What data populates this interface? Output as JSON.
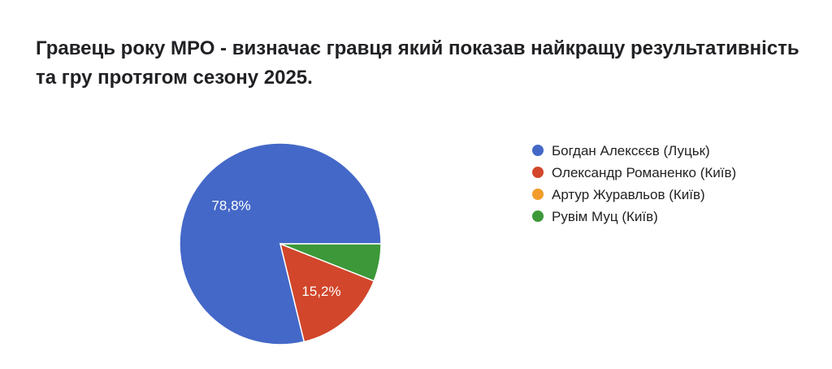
{
  "chart_data": {
    "type": "pie",
    "title": "Гравець року МРО - визначає гравця який показав найкращу результативність та гру протягом сезону 2025.",
    "categories": [
      "Богдан Алексєєв (Луцьк)",
      "Олександр Романенко (Київ)",
      "Артур Журавльов (Київ)",
      "Рувім Муц (Київ)"
    ],
    "values": [
      78.8,
      15.2,
      0,
      6.0
    ],
    "data_labels": [
      "78,8%",
      "15,2%",
      "",
      ""
    ],
    "colors": [
      "#4468c8",
      "#d2462b",
      "#f29d2a",
      "#3c9838"
    ],
    "legend_position": "right"
  }
}
